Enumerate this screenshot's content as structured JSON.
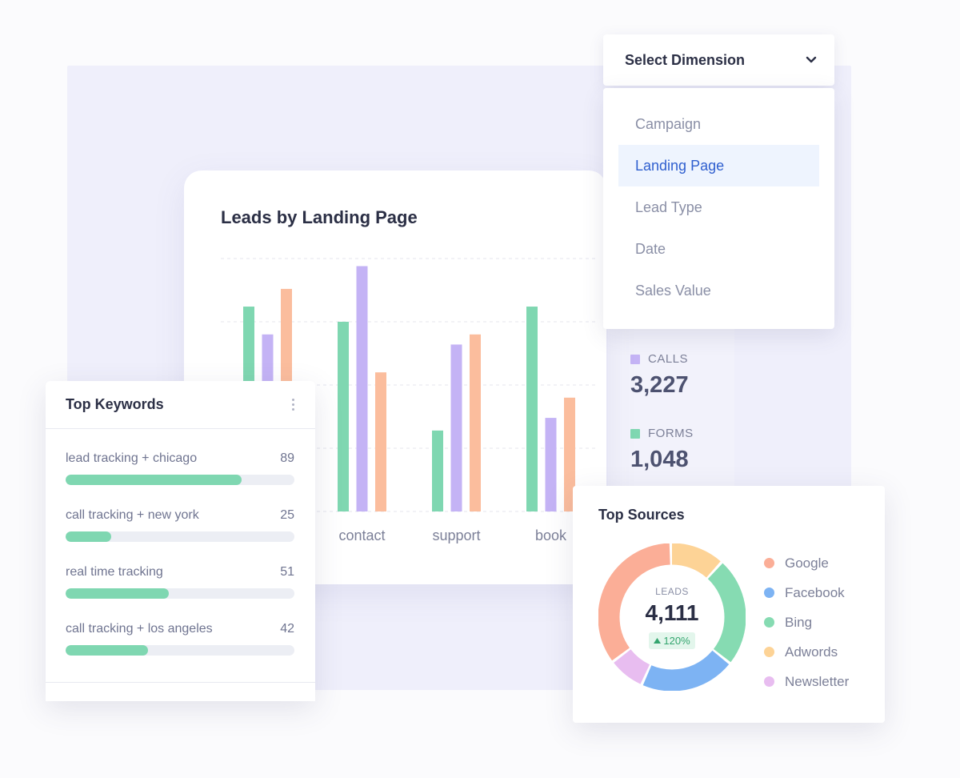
{
  "dropdown": {
    "title": "Select Dimension",
    "options": [
      "Campaign",
      "Landing Page",
      "Lead Type",
      "Date",
      "Sales Value"
    ],
    "selected": "Landing Page"
  },
  "main_chart": {
    "title": "Leads by Landing Page"
  },
  "stats": {
    "calls": {
      "label": "CALLS",
      "value": "3,227",
      "color": "#c4b3f5"
    },
    "forms": {
      "label": "FORMS",
      "value": "1,048",
      "color": "#7fd7b1"
    }
  },
  "keywords": {
    "title": "Top Keywords",
    "items": [
      {
        "label": "lead tracking + chicago",
        "count": "89",
        "fill": 0.77
      },
      {
        "label": "call tracking + new york",
        "count": "25",
        "fill": 0.2
      },
      {
        "label": "real time tracking",
        "count": "51",
        "fill": 0.45
      },
      {
        "label": "call tracking + los angeles",
        "count": "42",
        "fill": 0.36
      }
    ]
  },
  "sources": {
    "title": "Top Sources",
    "center_label": "LEADS",
    "center_value": "4,111",
    "change": "120%",
    "legend": [
      {
        "name": "Google",
        "color": "#fbae97",
        "value": 35
      },
      {
        "name": "Facebook",
        "color": "#7db3f3",
        "value": 21
      },
      {
        "name": "Bing",
        "color": "#86dbb2",
        "value": 24
      },
      {
        "name": "Adwords",
        "color": "#fdd396",
        "value": 12
      },
      {
        "name": "Newsletter",
        "color": "#e8bdf0",
        "value": 8
      }
    ]
  },
  "chart_data": {
    "type": "bar",
    "title": "Leads by Landing Page",
    "categories": [
      "",
      "contact",
      "support",
      "book"
    ],
    "series": [
      {
        "color": "#7fd7b1",
        "values": [
          81,
          75,
          32,
          81
        ]
      },
      {
        "color": "#c4b3f5",
        "values": [
          70,
          97,
          66,
          37
        ]
      },
      {
        "color": "#fbbd9d",
        "values": [
          88,
          55,
          70,
          45
        ]
      }
    ],
    "ylim": [
      0,
      100
    ],
    "grid": true
  }
}
